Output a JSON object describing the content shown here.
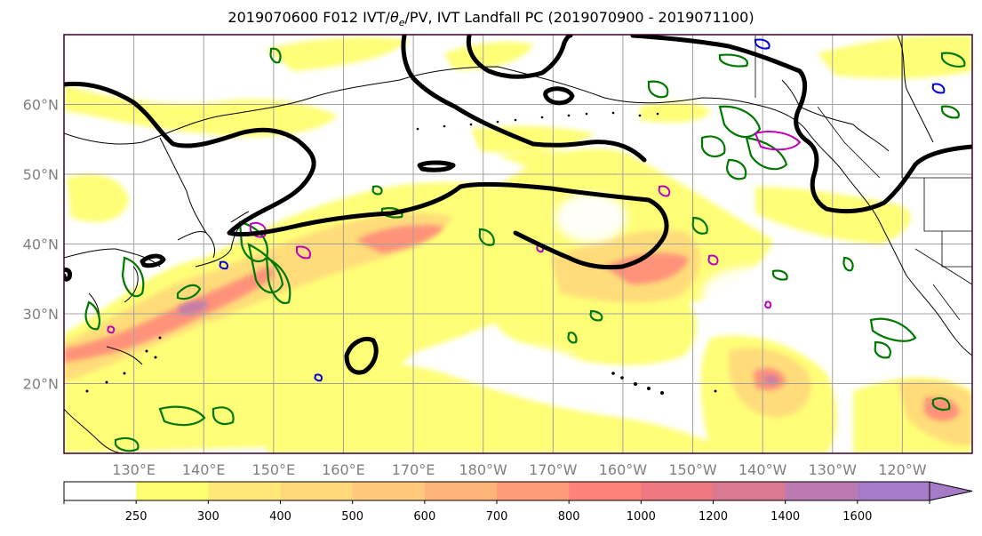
{
  "title": {
    "prefix": "2019070600 F012 IVT/",
    "theta": "θ",
    "theta_sub": "e",
    "suffix": "/PV, IVT Landfall PC (2019070900 - 2019071100)"
  },
  "map": {
    "lon_range": [
      120,
      250
    ],
    "lat_range": [
      10,
      70
    ],
    "lat_labels": [
      {
        "lat": 20,
        "text": "20°N"
      },
      {
        "lat": 30,
        "text": "30°N"
      },
      {
        "lat": 40,
        "text": "40°N"
      },
      {
        "lat": 50,
        "text": "50°N"
      },
      {
        "lat": 60,
        "text": "60°N"
      }
    ],
    "lon_labels": [
      {
        "lon": 130,
        "text": "130°E"
      },
      {
        "lon": 140,
        "text": "140°E"
      },
      {
        "lon": 150,
        "text": "150°E"
      },
      {
        "lon": 160,
        "text": "160°E"
      },
      {
        "lon": 170,
        "text": "170°E"
      },
      {
        "lon": 180,
        "text": "180°W"
      },
      {
        "lon": 190,
        "text": "170°W"
      },
      {
        "lon": 200,
        "text": "160°W"
      },
      {
        "lon": 210,
        "text": "150°W"
      },
      {
        "lon": 220,
        "text": "140°W"
      },
      {
        "lon": 230,
        "text": "130°W"
      },
      {
        "lon": 240,
        "text": "120°W"
      }
    ],
    "grid": true
  },
  "colorbar": {
    "levels": [
      "250",
      "300",
      "400",
      "500",
      "600",
      "700",
      "800",
      "1000",
      "1200",
      "1400",
      "1600"
    ],
    "colors": [
      "#ffffff",
      "#fffe70",
      "#ffe878",
      "#ffd97a",
      "#ffc87a",
      "#ffb47a",
      "#ff9c78",
      "#ff8278",
      "#ef7880",
      "#d97a92",
      "#bb7ab0",
      "#a57ac6"
    ],
    "extend": "max"
  },
  "colors": {
    "ivt_fill": [
      "#fffe70",
      "#ffe878",
      "#ffd97a",
      "#ffc87a",
      "#ffb47a",
      "#ff9c78",
      "#ff8278",
      "#ef7880",
      "#d97a92"
    ],
    "thetae_contour": "#000000",
    "pv_contour": "#007800",
    "pv_magenta": "#c000c0",
    "pv_blue": "#0000e0"
  }
}
